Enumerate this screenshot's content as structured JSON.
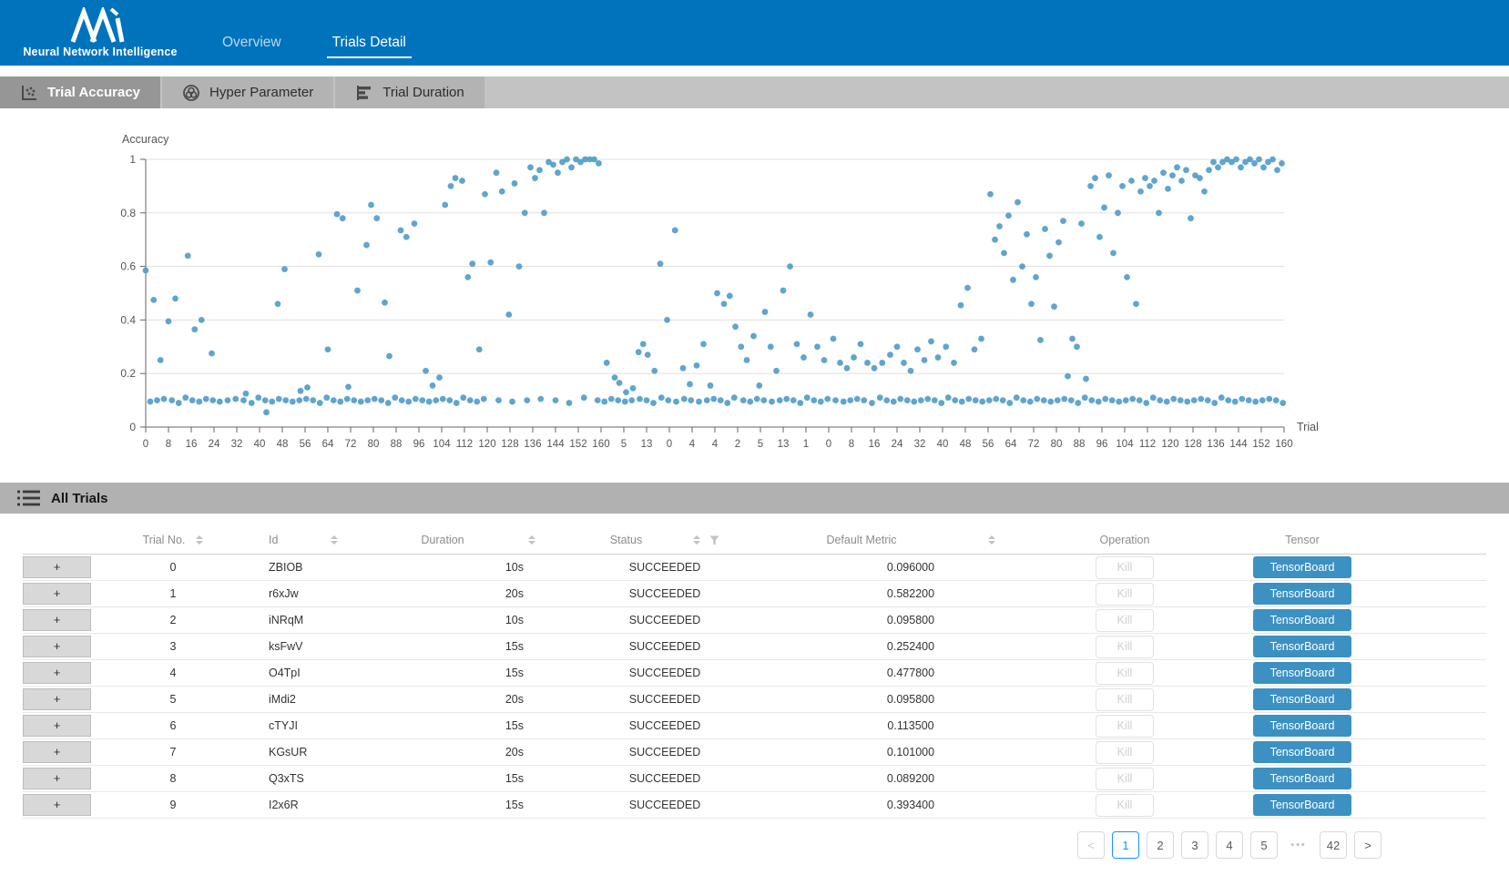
{
  "header": {
    "brand": "Neural Network Intelligence",
    "nav": [
      {
        "label": "Overview",
        "active": false
      },
      {
        "label": "Trials Detail",
        "active": true
      }
    ]
  },
  "tabs": [
    {
      "label": "Trial Accuracy",
      "icon": "scatter-icon",
      "selected": true
    },
    {
      "label": "Hyper Parameter",
      "icon": "venn-icon",
      "selected": false
    },
    {
      "label": "Trial Duration",
      "icon": "hbar-icon",
      "selected": false
    }
  ],
  "section": {
    "title": "All Trials"
  },
  "chart_data": {
    "type": "scatter",
    "title": "",
    "xlabel": "Trial",
    "ylabel": "Accuracy",
    "ylim": [
      0,
      1
    ],
    "grid": true,
    "dot_color": "#4f9bc8",
    "y_ticks": [
      0,
      0.2,
      0.4,
      0.6,
      0.8,
      1
    ],
    "x_tick_labels": [
      "0",
      "8",
      "16",
      "24",
      "32",
      "40",
      "48",
      "56",
      "64",
      "72",
      "80",
      "88",
      "96",
      "104",
      "112",
      "120",
      "128",
      "136",
      "144",
      "152",
      "160",
      "5",
      "13",
      "0",
      "4",
      "4",
      "2",
      "5",
      "13",
      "1",
      "0",
      "8",
      "16",
      "24",
      "32",
      "40",
      "48",
      "56",
      "64",
      "72",
      "80",
      "88",
      "96",
      "104",
      "112",
      "120",
      "128",
      "136",
      "144",
      "152",
      "160"
    ],
    "points_format": "[x_permille_across_axis, accuracy]",
    "points": [
      [
        4,
        0.095
      ],
      [
        10,
        0.1
      ],
      [
        16,
        0.105
      ],
      [
        23,
        0.1
      ],
      [
        29,
        0.09
      ],
      [
        35,
        0.11
      ],
      [
        41,
        0.1
      ],
      [
        47,
        0.095
      ],
      [
        53,
        0.105
      ],
      [
        59,
        0.1
      ],
      [
        65,
        0.095
      ],
      [
        72,
        0.1
      ],
      [
        79,
        0.105
      ],
      [
        86,
        0.1
      ],
      [
        93,
        0.09
      ],
      [
        99,
        0.11
      ],
      [
        105,
        0.1
      ],
      [
        111,
        0.095
      ],
      [
        117,
        0.105
      ],
      [
        123,
        0.1
      ],
      [
        129,
        0.095
      ],
      [
        135,
        0.1
      ],
      [
        141,
        0.105
      ],
      [
        147,
        0.1
      ],
      [
        153,
        0.09
      ],
      [
        159,
        0.11
      ],
      [
        165,
        0.1
      ],
      [
        171,
        0.095
      ],
      [
        177,
        0.105
      ],
      [
        183,
        0.1
      ],
      [
        189,
        0.095
      ],
      [
        195,
        0.1
      ],
      [
        201,
        0.105
      ],
      [
        207,
        0.1
      ],
      [
        213,
        0.09
      ],
      [
        219,
        0.11
      ],
      [
        225,
        0.1
      ],
      [
        231,
        0.095
      ],
      [
        237,
        0.105
      ],
      [
        243,
        0.1
      ],
      [
        249,
        0.095
      ],
      [
        255,
        0.1
      ],
      [
        261,
        0.105
      ],
      [
        267,
        0.1
      ],
      [
        273,
        0.09
      ],
      [
        279,
        0.11
      ],
      [
        285,
        0.1
      ],
      [
        291,
        0.095
      ],
      [
        297,
        0.105
      ],
      [
        310,
        0.1
      ],
      [
        322,
        0.095
      ],
      [
        335,
        0.1
      ],
      [
        347,
        0.105
      ],
      [
        360,
        0.1
      ],
      [
        372,
        0.09
      ],
      [
        385,
        0.11
      ],
      [
        397,
        0.1
      ],
      [
        403,
        0.095
      ],
      [
        409,
        0.105
      ],
      [
        415,
        0.1
      ],
      [
        421,
        0.095
      ],
      [
        427,
        0.1
      ],
      [
        434,
        0.105
      ],
      [
        440,
        0.1
      ],
      [
        446,
        0.09
      ],
      [
        453,
        0.11
      ],
      [
        459,
        0.1
      ],
      [
        466,
        0.095
      ],
      [
        473,
        0.105
      ],
      [
        479,
        0.1
      ],
      [
        486,
        0.095
      ],
      [
        493,
        0.1
      ],
      [
        499,
        0.105
      ],
      [
        505,
        0.1
      ],
      [
        511,
        0.09
      ],
      [
        517,
        0.11
      ],
      [
        525,
        0.1
      ],
      [
        531,
        0.095
      ],
      [
        537,
        0.105
      ],
      [
        543,
        0.1
      ],
      [
        550,
        0.095
      ],
      [
        557,
        0.1
      ],
      [
        563,
        0.105
      ],
      [
        569,
        0.1
      ],
      [
        575,
        0.09
      ],
      [
        581,
        0.11
      ],
      [
        587,
        0.1
      ],
      [
        593,
        0.095
      ],
      [
        599,
        0.105
      ],
      [
        606,
        0.1
      ],
      [
        613,
        0.095
      ],
      [
        619,
        0.1
      ],
      [
        625,
        0.105
      ],
      [
        631,
        0.1
      ],
      [
        638,
        0.09
      ],
      [
        645,
        0.11
      ],
      [
        651,
        0.1
      ],
      [
        657,
        0.095
      ],
      [
        663,
        0.105
      ],
      [
        669,
        0.1
      ],
      [
        675,
        0.095
      ],
      [
        681,
        0.1
      ],
      [
        687,
        0.105
      ],
      [
        693,
        0.1
      ],
      [
        699,
        0.09
      ],
      [
        705,
        0.11
      ],
      [
        711,
        0.1
      ],
      [
        717,
        0.095
      ],
      [
        723,
        0.105
      ],
      [
        729,
        0.1
      ],
      [
        735,
        0.095
      ],
      [
        741,
        0.1
      ],
      [
        747,
        0.105
      ],
      [
        753,
        0.1
      ],
      [
        759,
        0.09
      ],
      [
        765,
        0.11
      ],
      [
        771,
        0.1
      ],
      [
        777,
        0.095
      ],
      [
        783,
        0.105
      ],
      [
        789,
        0.1
      ],
      [
        795,
        0.095
      ],
      [
        801,
        0.1
      ],
      [
        807,
        0.105
      ],
      [
        813,
        0.1
      ],
      [
        819,
        0.09
      ],
      [
        825,
        0.11
      ],
      [
        831,
        0.1
      ],
      [
        837,
        0.095
      ],
      [
        843,
        0.105
      ],
      [
        849,
        0.1
      ],
      [
        855,
        0.095
      ],
      [
        861,
        0.1
      ],
      [
        867,
        0.105
      ],
      [
        873,
        0.1
      ],
      [
        879,
        0.09
      ],
      [
        885,
        0.11
      ],
      [
        891,
        0.1
      ],
      [
        897,
        0.095
      ],
      [
        903,
        0.105
      ],
      [
        909,
        0.1
      ],
      [
        915,
        0.095
      ],
      [
        921,
        0.1
      ],
      [
        927,
        0.105
      ],
      [
        933,
        0.1
      ],
      [
        939,
        0.09
      ],
      [
        945,
        0.11
      ],
      [
        951,
        0.1
      ],
      [
        957,
        0.095
      ],
      [
        963,
        0.105
      ],
      [
        969,
        0.1
      ],
      [
        975,
        0.095
      ],
      [
        981,
        0.1
      ],
      [
        987,
        0.105
      ],
      [
        993,
        0.1
      ],
      [
        999,
        0.09
      ],
      [
        0,
        0.585
      ],
      [
        7,
        0.475
      ],
      [
        13,
        0.25
      ],
      [
        20,
        0.395
      ],
      [
        26,
        0.48
      ],
      [
        37,
        0.64
      ],
      [
        43,
        0.365
      ],
      [
        49,
        0.4
      ],
      [
        58,
        0.275
      ],
      [
        88,
        0.125
      ],
      [
        106,
        0.055
      ],
      [
        116,
        0.46
      ],
      [
        122,
        0.59
      ],
      [
        136,
        0.135
      ],
      [
        142,
        0.148
      ],
      [
        152,
        0.645
      ],
      [
        160,
        0.29
      ],
      [
        168,
        0.795
      ],
      [
        173,
        0.78
      ],
      [
        178,
        0.15
      ],
      [
        186,
        0.51
      ],
      [
        194,
        0.68
      ],
      [
        198,
        0.83
      ],
      [
        203,
        0.78
      ],
      [
        210,
        0.465
      ],
      [
        214,
        0.265
      ],
      [
        224,
        0.735
      ],
      [
        229,
        0.71
      ],
      [
        236,
        0.76
      ],
      [
        246,
        0.21
      ],
      [
        252,
        0.155
      ],
      [
        258,
        0.185
      ],
      [
        263,
        0.83
      ],
      [
        268,
        0.9
      ],
      [
        272,
        0.93
      ],
      [
        278,
        0.92
      ],
      [
        283,
        0.56
      ],
      [
        287,
        0.61
      ],
      [
        293,
        0.29
      ],
      [
        298,
        0.87
      ],
      [
        303,
        0.615
      ],
      [
        308,
        0.95
      ],
      [
        313,
        0.88
      ],
      [
        319,
        0.42
      ],
      [
        324,
        0.91
      ],
      [
        328,
        0.6
      ],
      [
        333,
        0.8
      ],
      [
        338,
        0.97
      ],
      [
        342,
        0.93
      ],
      [
        346,
        0.96
      ],
      [
        350,
        0.8
      ],
      [
        354,
        0.99
      ],
      [
        358,
        0.98
      ],
      [
        362,
        0.95
      ],
      [
        366,
        0.99
      ],
      [
        370,
        1
      ],
      [
        374,
        0.97
      ],
      [
        378,
        1
      ],
      [
        382,
        0.99
      ],
      [
        386,
        1
      ],
      [
        390,
        1
      ],
      [
        394,
        1
      ],
      [
        398,
        0.985
      ],
      [
        405,
        0.24
      ],
      [
        412,
        0.185
      ],
      [
        416,
        0.165
      ],
      [
        422,
        0.13
      ],
      [
        428,
        0.145
      ],
      [
        433,
        0.28
      ],
      [
        437,
        0.31
      ],
      [
        441,
        0.27
      ],
      [
        447,
        0.21
      ],
      [
        452,
        0.61
      ],
      [
        458,
        0.4
      ],
      [
        465,
        0.735
      ],
      [
        472,
        0.22
      ],
      [
        478,
        0.16
      ],
      [
        484,
        0.23
      ],
      [
        490,
        0.31
      ],
      [
        496,
        0.155
      ],
      [
        502,
        0.5
      ],
      [
        508,
        0.46
      ],
      [
        513,
        0.49
      ],
      [
        518,
        0.375
      ],
      [
        523,
        0.3
      ],
      [
        528,
        0.25
      ],
      [
        534,
        0.34
      ],
      [
        539,
        0.155
      ],
      [
        544,
        0.43
      ],
      [
        549,
        0.3
      ],
      [
        554,
        0.21
      ],
      [
        560,
        0.51
      ],
      [
        566,
        0.6
      ],
      [
        572,
        0.31
      ],
      [
        578,
        0.26
      ],
      [
        584,
        0.42
      ],
      [
        590,
        0.3
      ],
      [
        596,
        0.25
      ],
      [
        604,
        0.33
      ],
      [
        610,
        0.24
      ],
      [
        616,
        0.22
      ],
      [
        622,
        0.26
      ],
      [
        628,
        0.31
      ],
      [
        634,
        0.24
      ],
      [
        640,
        0.22
      ],
      [
        647,
        0.24
      ],
      [
        654,
        0.27
      ],
      [
        660,
        0.3
      ],
      [
        666,
        0.24
      ],
      [
        672,
        0.21
      ],
      [
        678,
        0.29
      ],
      [
        684,
        0.25
      ],
      [
        690,
        0.32
      ],
      [
        696,
        0.26
      ],
      [
        703,
        0.3
      ],
      [
        710,
        0.24
      ],
      [
        716,
        0.455
      ],
      [
        722,
        0.52
      ],
      [
        728,
        0.29
      ],
      [
        734,
        0.33
      ],
      [
        742,
        0.87
      ],
      [
        746,
        0.7
      ],
      [
        750,
        0.75
      ],
      [
        754,
        0.65
      ],
      [
        758,
        0.79
      ],
      [
        762,
        0.55
      ],
      [
        766,
        0.84
      ],
      [
        770,
        0.6
      ],
      [
        774,
        0.72
      ],
      [
        778,
        0.46
      ],
      [
        782,
        0.56
      ],
      [
        786,
        0.325
      ],
      [
        790,
        0.74
      ],
      [
        794,
        0.64
      ],
      [
        798,
        0.45
      ],
      [
        802,
        0.69
      ],
      [
        806,
        0.77
      ],
      [
        810,
        0.19
      ],
      [
        814,
        0.33
      ],
      [
        818,
        0.3
      ],
      [
        822,
        0.76
      ],
      [
        826,
        0.18
      ],
      [
        830,
        0.9
      ],
      [
        834,
        0.93
      ],
      [
        838,
        0.71
      ],
      [
        842,
        0.82
      ],
      [
        846,
        0.94
      ],
      [
        850,
        0.65
      ],
      [
        854,
        0.8
      ],
      [
        858,
        0.9
      ],
      [
        862,
        0.56
      ],
      [
        866,
        0.92
      ],
      [
        870,
        0.46
      ],
      [
        874,
        0.88
      ],
      [
        878,
        0.93
      ],
      [
        882,
        0.9
      ],
      [
        886,
        0.92
      ],
      [
        890,
        0.8
      ],
      [
        894,
        0.95
      ],
      [
        898,
        0.89
      ],
      [
        902,
        0.94
      ],
      [
        906,
        0.97
      ],
      [
        910,
        0.92
      ],
      [
        914,
        0.96
      ],
      [
        918,
        0.78
      ],
      [
        922,
        0.94
      ],
      [
        926,
        0.93
      ],
      [
        930,
        0.88
      ],
      [
        934,
        0.96
      ],
      [
        938,
        0.99
      ],
      [
        942,
        0.97
      ],
      [
        946,
        0.99
      ],
      [
        950,
        1
      ],
      [
        954,
        0.99
      ],
      [
        958,
        1
      ],
      [
        962,
        0.97
      ],
      [
        966,
        0.99
      ],
      [
        970,
        1
      ],
      [
        974,
        0.985
      ],
      [
        978,
        1
      ],
      [
        982,
        0.97
      ],
      [
        986,
        0.99
      ],
      [
        990,
        1
      ],
      [
        994,
        0.96
      ],
      [
        998,
        0.985
      ]
    ]
  },
  "table": {
    "expand_label": "+",
    "columns": [
      {
        "label": "Trial No.",
        "sortable": true,
        "filter": false
      },
      {
        "label": "Id",
        "sortable": true,
        "filter": false
      },
      {
        "label": "Duration",
        "sortable": true,
        "filter": false
      },
      {
        "label": "Status",
        "sortable": true,
        "filter": true
      },
      {
        "label": "Default Metric",
        "sortable": true,
        "filter": false
      },
      {
        "label": "Operation",
        "sortable": false,
        "filter": false
      },
      {
        "label": "Tensor",
        "sortable": false,
        "filter": false
      }
    ],
    "kill_label": "Kill",
    "tensorboard_label": "TensorBoard",
    "rows": [
      {
        "no": "0",
        "id": "ZBIOB",
        "duration": "10s",
        "status": "SUCCEEDED",
        "metric": "0.096000"
      },
      {
        "no": "1",
        "id": "r6xJw",
        "duration": "20s",
        "status": "SUCCEEDED",
        "metric": "0.582200"
      },
      {
        "no": "2",
        "id": "iNRqM",
        "duration": "10s",
        "status": "SUCCEEDED",
        "metric": "0.095800"
      },
      {
        "no": "3",
        "id": "ksFwV",
        "duration": "15s",
        "status": "SUCCEEDED",
        "metric": "0.252400"
      },
      {
        "no": "4",
        "id": "O4TpI",
        "duration": "15s",
        "status": "SUCCEEDED",
        "metric": "0.477800"
      },
      {
        "no": "5",
        "id": "iMdi2",
        "duration": "20s",
        "status": "SUCCEEDED",
        "metric": "0.095800"
      },
      {
        "no": "6",
        "id": "cTYJI",
        "duration": "15s",
        "status": "SUCCEEDED",
        "metric": "0.113500"
      },
      {
        "no": "7",
        "id": "KGsUR",
        "duration": "20s",
        "status": "SUCCEEDED",
        "metric": "0.101000"
      },
      {
        "no": "8",
        "id": "Q3xTS",
        "duration": "15s",
        "status": "SUCCEEDED",
        "metric": "0.089200"
      },
      {
        "no": "9",
        "id": "I2x6R",
        "duration": "15s",
        "status": "SUCCEEDED",
        "metric": "0.393400"
      }
    ]
  },
  "pagination": {
    "items": [
      {
        "label": "<",
        "type": "prev",
        "active": false
      },
      {
        "label": "1",
        "type": "page",
        "active": true
      },
      {
        "label": "2",
        "type": "page",
        "active": false
      },
      {
        "label": "3",
        "type": "page",
        "active": false
      },
      {
        "label": "4",
        "type": "page",
        "active": false
      },
      {
        "label": "5",
        "type": "page",
        "active": false
      },
      {
        "label": "•••",
        "type": "ellipsis",
        "active": false
      },
      {
        "label": "42",
        "type": "page",
        "active": false
      },
      {
        "label": ">",
        "type": "next",
        "active": false
      }
    ]
  },
  "colors": {
    "header_blue": "#0073bd",
    "scatter_dot": "#4f9bc8",
    "succeeded_green": "#2f9e5f",
    "tensorboard_blue": "#3c91c2",
    "pagination_active": "#1890ff"
  }
}
